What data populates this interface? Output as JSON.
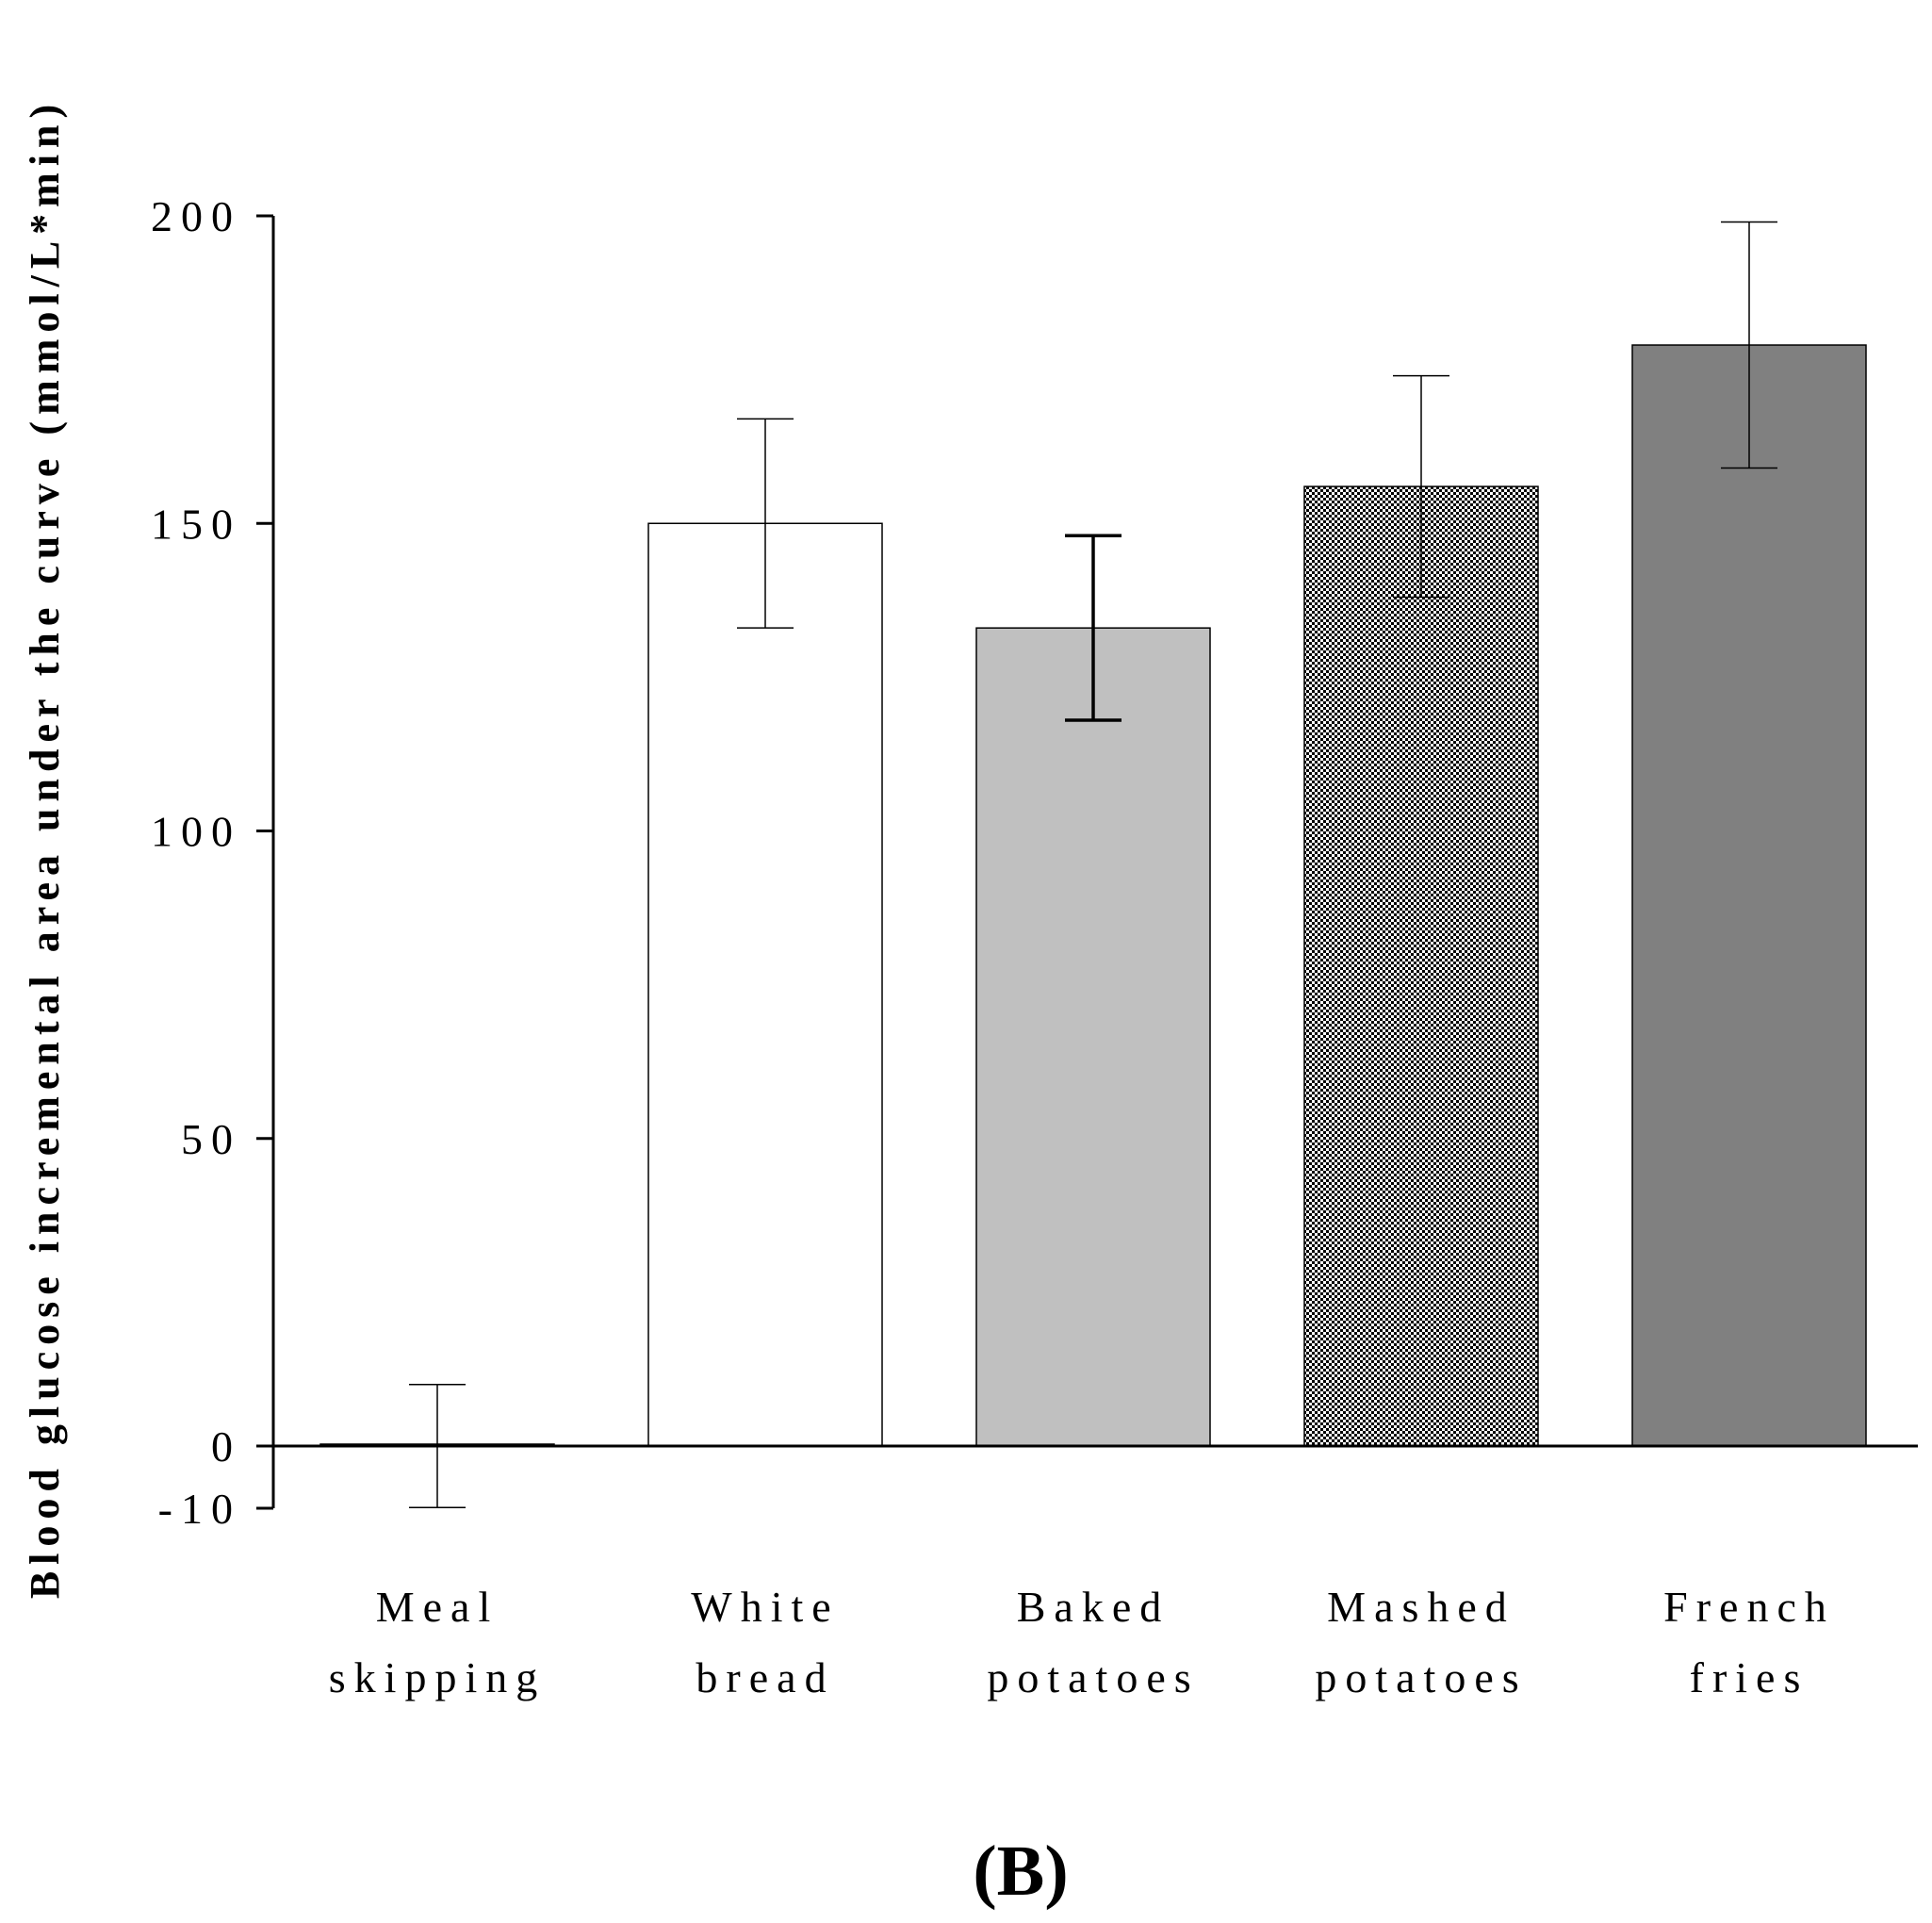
{
  "chart_data": {
    "type": "bar",
    "ylabel": "Blood glucose incremental area under the curve (mmol/L*min)",
    "ylim": [
      -10,
      200
    ],
    "yticks": [
      -10,
      0,
      50,
      100,
      150,
      200
    ],
    "categories": [
      [
        "Meal",
        "skipping"
      ],
      [
        "White",
        "bread"
      ],
      [
        "Baked",
        "potatoes"
      ],
      [
        "Mashed",
        "potatoes"
      ],
      [
        "French",
        "fries"
      ]
    ],
    "values": [
      0,
      150,
      133,
      156,
      179
    ],
    "error": [
      10,
      17,
      15,
      18,
      20
    ],
    "fills": [
      "#000000",
      "#ffffff",
      "#c0c0c0",
      "pattern-checker",
      "#808080"
    ],
    "grid": false,
    "legend": "none"
  },
  "panel_label": "(B)"
}
